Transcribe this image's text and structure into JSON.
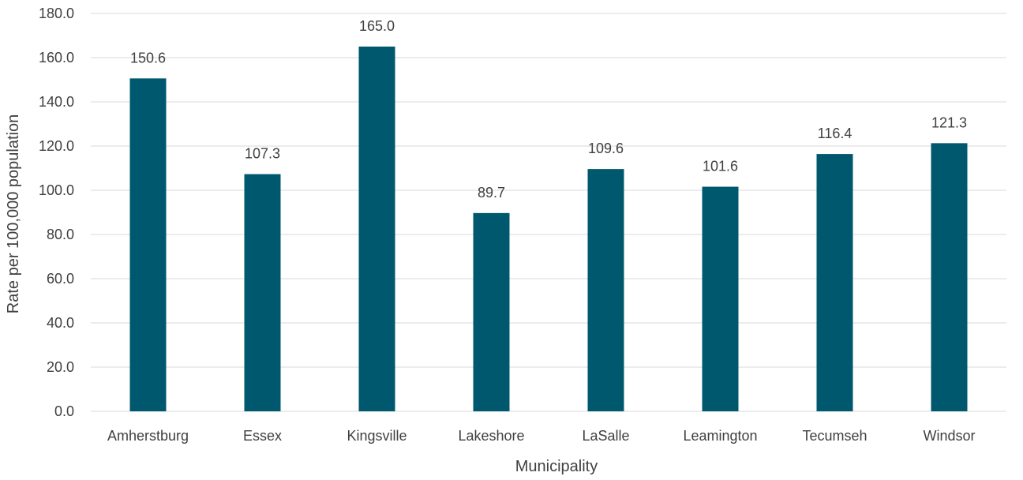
{
  "chart_data": {
    "type": "bar",
    "title": "",
    "xlabel": "Municipality",
    "ylabel": "Rate per 100,000 population",
    "categories": [
      "Amherstburg",
      "Essex",
      "Kingsville",
      "Lakeshore",
      "LaSalle",
      "Leamington",
      "Tecumseh",
      "Windsor"
    ],
    "values": [
      150.6,
      107.3,
      165.0,
      89.7,
      109.6,
      101.6,
      116.4,
      121.3
    ],
    "data_labels": [
      "150.6",
      "107.3",
      "165.0",
      "89.7",
      "109.6",
      "101.6",
      "116.4",
      "121.3"
    ],
    "ylim": [
      0,
      180
    ],
    "yticks": [
      "0.0",
      "20.0",
      "40.0",
      "60.0",
      "80.0",
      "100.0",
      "120.0",
      "140.0",
      "160.0",
      "180.0"
    ],
    "grid": true,
    "legend": "none",
    "colors": {
      "bar": "#00586E",
      "grid": "#D9D9D9",
      "text": "#404040"
    }
  }
}
